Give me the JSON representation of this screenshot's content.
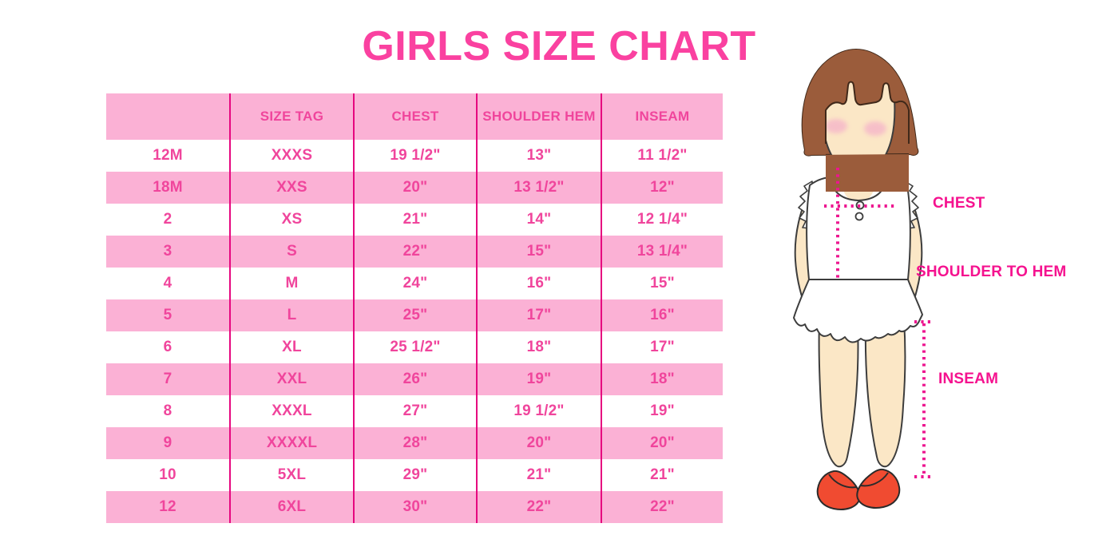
{
  "title": "GIRLS SIZE CHART",
  "chart_data": {
    "type": "table",
    "title": "GIRLS SIZE CHART",
    "columns": [
      "",
      "SIZE TAG",
      "CHEST",
      "SHOULDER HEM",
      "INSEAM"
    ],
    "rows": [
      [
        "12M",
        "XXXS",
        "19 1/2\"",
        "13\"",
        "11 1/2\""
      ],
      [
        "18M",
        "XXS",
        "20\"",
        "13 1/2\"",
        "12\""
      ],
      [
        "2",
        "XS",
        "21\"",
        "14\"",
        "12 1/4\""
      ],
      [
        "3",
        "S",
        "22\"",
        "15\"",
        "13 1/4\""
      ],
      [
        "4",
        "M",
        "24\"",
        "16\"",
        "15\""
      ],
      [
        "5",
        "L",
        "25\"",
        "17\"",
        "16\""
      ],
      [
        "6",
        "XL",
        "25 1/2\"",
        "18\"",
        "17\""
      ],
      [
        "7",
        "XXL",
        "26\"",
        "19\"",
        "18\""
      ],
      [
        "8",
        "XXXL",
        "27\"",
        "19 1/2\"",
        "19\""
      ],
      [
        "9",
        "XXXXL",
        "28\"",
        "20\"",
        "20\""
      ],
      [
        "10",
        "5XL",
        "29\"",
        "21\"",
        "21\""
      ],
      [
        "12",
        "6XL",
        "30\"",
        "22\"",
        "22\""
      ]
    ],
    "layout": {
      "alternating_row_colors": [
        "white",
        "pink"
      ],
      "header_background": "pink",
      "grid": "vertical-lines-only"
    }
  },
  "figure": {
    "labels": {
      "chest": "CHEST",
      "shoulder_to_hem": "SHOULDER TO HEM",
      "inseam": "INSEAM"
    }
  },
  "colors": {
    "title_pink": "#fa41a0",
    "table_text_pink": "#f0459c",
    "row_pink": "#fbb1d5",
    "grid_line_magenta": "#e6077f",
    "label_magenta": "#f5128f",
    "dotted_line_magenta": "#ed1690",
    "hair_brown": "#9b5c3b",
    "skin": "#fbe7c6",
    "shoe_red": "#f04b31"
  }
}
